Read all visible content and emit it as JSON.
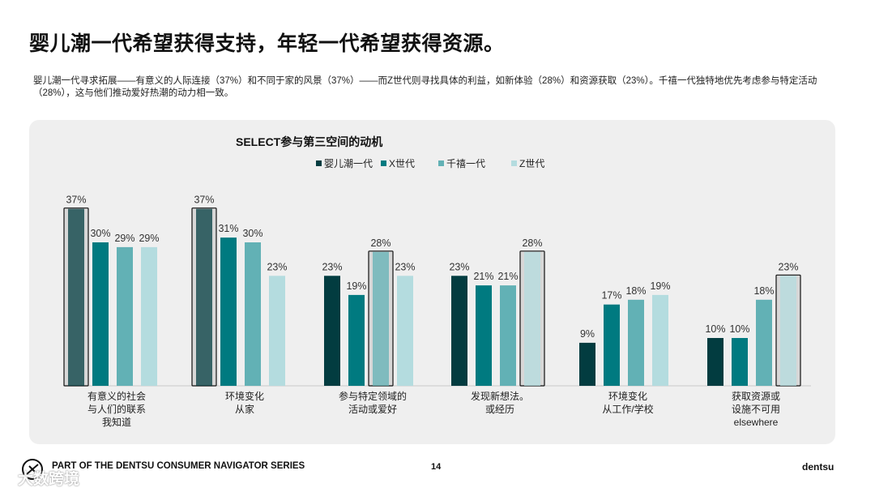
{
  "page": {
    "title": "婴儿潮一代希望获得支持，年轻一代希望获得资源。",
    "subtitle": "婴儿潮一代寻求拓展——有意义的人际连接（37%）和不同于家的风景（37%）——而Z世代则寻找具体的利益，如新体验（28%）和资源获取（23%）。千禧一代独特地优先考虑参与特定活动（28%），这与他们推动爱好热潮的动力相一致。",
    "footer_text": "PART OF THE DENTSU CONSUMER NAVIGATOR SERIES",
    "page_number": "14",
    "brand": "dentsu",
    "watermark": "大数跨境"
  },
  "chart_data": {
    "type": "bar",
    "title": "SELECT参与第三空间的动机",
    "ylim": [
      0,
      40
    ],
    "legend_position": "top-center",
    "categories": [
      [
        "有意义的社会",
        "与人们的联系",
        "我知道"
      ],
      [
        "环境变化",
        "从家"
      ],
      [
        "参与特定领域的",
        "活动或爱好"
      ],
      [
        "发现新想法。",
        "或经历"
      ],
      [
        "环境变化",
        "从工作/学校"
      ],
      [
        "获取资源或",
        "设施不可用",
        "elsewhere"
      ]
    ],
    "series": [
      {
        "name": "婴儿潮一代",
        "color": "#023c40",
        "values": [
          37,
          37,
          23,
          23,
          9,
          10
        ]
      },
      {
        "name": "X世代",
        "color": "#007a80",
        "values": [
          30,
          31,
          19,
          21,
          17,
          10
        ]
      },
      {
        "name": "千禧一代",
        "color": "#62b1b5",
        "values": [
          29,
          30,
          28,
          21,
          18,
          18
        ]
      },
      {
        "name": "Z世代",
        "color": "#b4dcdf",
        "values": [
          29,
          23,
          23,
          28,
          19,
          23
        ]
      }
    ],
    "labels": [
      [
        "37%",
        "30%",
        "29%",
        "29%"
      ],
      [
        "37%",
        "31%",
        "30%",
        "23%"
      ],
      [
        "23%",
        "19%",
        "28%",
        "23%"
      ],
      [
        "23%",
        "21%",
        "21%",
        "28%"
      ],
      [
        "9%",
        "17%",
        "18%",
        "19%"
      ],
      [
        "10%",
        "10%",
        "18%",
        "23%"
      ]
    ],
    "highlight_series_index": [
      0,
      0,
      2,
      3,
      -1,
      3
    ]
  }
}
